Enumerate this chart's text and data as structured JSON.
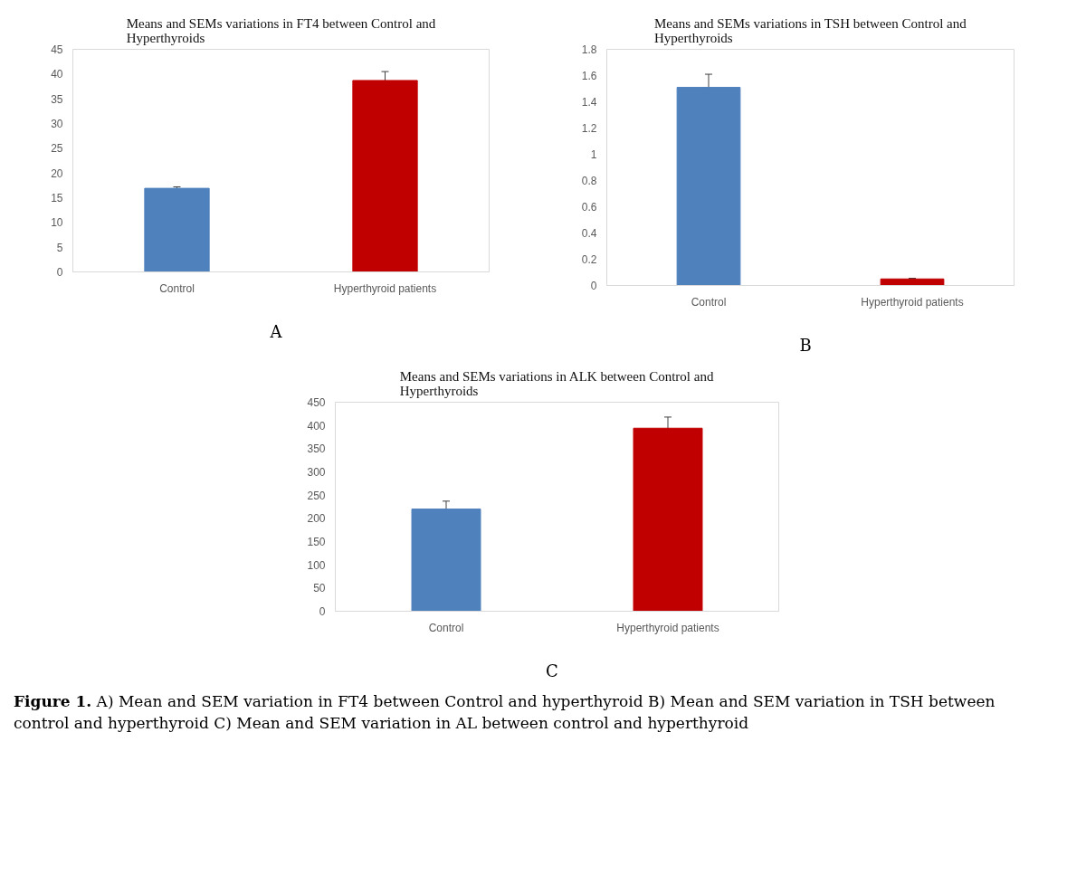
{
  "chart_data": [
    {
      "type": "bar",
      "title": "Means and SEMs variations in FT4 between Control and Hyperthyroids",
      "categories": [
        "Control",
        "Hyperthyroid patients"
      ],
      "values": [
        16.9,
        38.7
      ],
      "colors": [
        "#4f81bd",
        "#c00000"
      ],
      "errors": [
        0.3,
        1.8
      ],
      "ylim": [
        0,
        45
      ],
      "yticks": [
        0,
        5,
        10,
        15,
        20,
        25,
        30,
        35,
        40,
        45
      ],
      "grid": false,
      "annotations": [
        "A"
      ]
    },
    {
      "type": "bar",
      "title": "Means and SEMs variations in TSH between Control and Hyperthyroids",
      "categories": [
        "Control",
        "Hyperthyroid patients"
      ],
      "values": [
        1.51,
        0.05
      ],
      "colors": [
        "#4f81bd",
        "#c00000"
      ],
      "errors": [
        0.1,
        0.005
      ],
      "ylim": [
        0,
        1.8
      ],
      "yticks": [
        0,
        0.2,
        0.4,
        0.6,
        0.8,
        1,
        1.2,
        1.4,
        1.6,
        1.8
      ],
      "grid": false,
      "annotations": [
        "B"
      ]
    },
    {
      "type": "bar",
      "title": "Means and SEMs variations in ALK between Control and Hyperthyroids",
      "categories": [
        "Control",
        "Hyperthyroid patients"
      ],
      "values": [
        220,
        394
      ],
      "colors": [
        "#4f81bd",
        "#c00000"
      ],
      "errors": [
        17,
        24
      ],
      "ylim": [
        0,
        450
      ],
      "yticks": [
        0,
        50,
        100,
        150,
        200,
        250,
        300,
        350,
        400,
        450
      ],
      "grid": false,
      "annotations": [
        "C",
        "Figure 1. A) Mean and SEM variation in FT4 between Control and hyperthyroid B) Mean and SEM variation in TSH between control and hyperthyroid C) Mean and SEM variation in AL between control and hyperthyroid"
      ]
    }
  ]
}
